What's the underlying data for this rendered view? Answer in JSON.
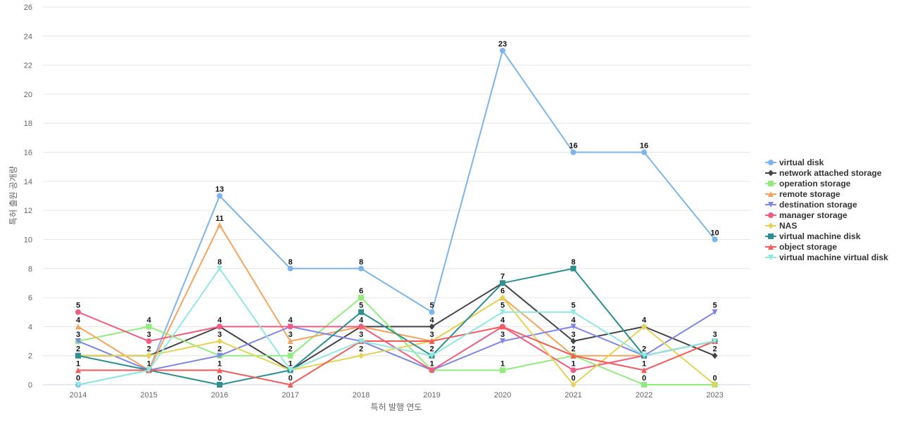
{
  "chart_data": {
    "type": "line",
    "title": "",
    "xlabel": "특허 발행 연도",
    "ylabel": "특허 출원 공개량",
    "x": [
      "2014",
      "2015",
      "2016",
      "2017",
      "2018",
      "2019",
      "2020",
      "2021",
      "2022",
      "2023"
    ],
    "ylim": [
      0,
      26
    ],
    "yticks": [
      0,
      2,
      4,
      6,
      8,
      10,
      12,
      14,
      16,
      18,
      20,
      22,
      24,
      26
    ],
    "grid": true,
    "legend_position": "right",
    "series": [
      {
        "name": "virtual disk",
        "color": "#7cb5ec",
        "marker": "circle",
        "values": [
          0,
          1,
          13,
          8,
          8,
          5,
          23,
          16,
          16,
          10
        ]
      },
      {
        "name": "network attached storage",
        "color": "#434348",
        "marker": "diamond",
        "values": [
          2,
          2,
          4,
          1,
          4,
          4,
          7,
          3,
          4,
          2
        ]
      },
      {
        "name": "operation storage",
        "color": "#90ed7d",
        "marker": "square",
        "values": [
          3,
          4,
          2,
          2,
          6,
          1,
          1,
          2,
          0,
          0
        ]
      },
      {
        "name": "remote storage",
        "color": "#f7a35c",
        "marker": "triangle",
        "values": [
          4,
          1,
          11,
          3,
          4,
          3,
          6,
          2,
          2,
          3
        ]
      },
      {
        "name": "destination storage",
        "color": "#8085e9",
        "marker": "triangle-down",
        "values": [
          3,
          1,
          2,
          4,
          3,
          1,
          3,
          4,
          2,
          5
        ]
      },
      {
        "name": "manager storage",
        "color": "#f15c80",
        "marker": "circle",
        "values": [
          5,
          3,
          4,
          4,
          4,
          1,
          4,
          1,
          2,
          3
        ]
      },
      {
        "name": "NAS",
        "color": "#e4d354",
        "marker": "diamond",
        "values": [
          2,
          2,
          3,
          1,
          2,
          3,
          6,
          0,
          4,
          0
        ]
      },
      {
        "name": "virtual machine disk",
        "color": "#2b908f",
        "marker": "square",
        "values": [
          2,
          1,
          0,
          1,
          5,
          2,
          7,
          8,
          2,
          3
        ]
      },
      {
        "name": "object storage",
        "color": "#f45b5b",
        "marker": "triangle",
        "values": [
          1,
          1,
          1,
          0,
          3,
          3,
          4,
          2,
          1,
          3
        ]
      },
      {
        "name": "virtual machine virtual disk",
        "color": "#91e8e1",
        "marker": "triangle-down",
        "values": [
          0,
          1,
          8,
          1,
          3,
          2,
          5,
          5,
          2,
          3
        ]
      }
    ],
    "data_labels": [
      {
        "x": "2014",
        "y": 5,
        "text": "5"
      },
      {
        "x": "2014",
        "y": 4,
        "text": "4"
      },
      {
        "x": "2014",
        "y": 3,
        "text": "3"
      },
      {
        "x": "2014",
        "y": 2,
        "text": "2"
      },
      {
        "x": "2014",
        "y": 1,
        "text": "1"
      },
      {
        "x": "2014",
        "y": 0,
        "text": "0"
      },
      {
        "x": "2015",
        "y": 4,
        "text": "4"
      },
      {
        "x": "2015",
        "y": 3,
        "text": "3"
      },
      {
        "x": "2015",
        "y": 2,
        "text": "2"
      },
      {
        "x": "2015",
        "y": 1,
        "text": "1"
      },
      {
        "x": "2016",
        "y": 13,
        "text": "13"
      },
      {
        "x": "2016",
        "y": 11,
        "text": "11"
      },
      {
        "x": "2016",
        "y": 8,
        "text": "8"
      },
      {
        "x": "2016",
        "y": 4,
        "text": "4"
      },
      {
        "x": "2016",
        "y": 3,
        "text": "3"
      },
      {
        "x": "2016",
        "y": 2,
        "text": "2"
      },
      {
        "x": "2016",
        "y": 1,
        "text": "1"
      },
      {
        "x": "2016",
        "y": 0,
        "text": "0"
      },
      {
        "x": "2017",
        "y": 8,
        "text": "8"
      },
      {
        "x": "2017",
        "y": 4,
        "text": "4"
      },
      {
        "x": "2017",
        "y": 3,
        "text": "3"
      },
      {
        "x": "2017",
        "y": 2,
        "text": "2"
      },
      {
        "x": "2017",
        "y": 1,
        "text": "1"
      },
      {
        "x": "2017",
        "y": 0,
        "text": "0"
      },
      {
        "x": "2018",
        "y": 8,
        "text": "8"
      },
      {
        "x": "2018",
        "y": 6,
        "text": "6"
      },
      {
        "x": "2018",
        "y": 5,
        "text": "5"
      },
      {
        "x": "2018",
        "y": 4,
        "text": "4"
      },
      {
        "x": "2018",
        "y": 3,
        "text": "3"
      },
      {
        "x": "2018",
        "y": 2,
        "text": "2"
      },
      {
        "x": "2019",
        "y": 5,
        "text": "5"
      },
      {
        "x": "2019",
        "y": 4,
        "text": "4"
      },
      {
        "x": "2019",
        "y": 3,
        "text": "3"
      },
      {
        "x": "2019",
        "y": 2,
        "text": "2"
      },
      {
        "x": "2019",
        "y": 1,
        "text": "1"
      },
      {
        "x": "2020",
        "y": 23,
        "text": "23"
      },
      {
        "x": "2020",
        "y": 7,
        "text": "7"
      },
      {
        "x": "2020",
        "y": 6,
        "text": "6"
      },
      {
        "x": "2020",
        "y": 5,
        "text": "5"
      },
      {
        "x": "2020",
        "y": 4,
        "text": "4"
      },
      {
        "x": "2020",
        "y": 3,
        "text": "3"
      },
      {
        "x": "2020",
        "y": 1,
        "text": "1"
      },
      {
        "x": "2021",
        "y": 16,
        "text": "16"
      },
      {
        "x": "2021",
        "y": 8,
        "text": "8"
      },
      {
        "x": "2021",
        "y": 5,
        "text": "5"
      },
      {
        "x": "2021",
        "y": 4,
        "text": "4"
      },
      {
        "x": "2021",
        "y": 3,
        "text": "3"
      },
      {
        "x": "2021",
        "y": 2,
        "text": "2"
      },
      {
        "x": "2021",
        "y": 1,
        "text": "1"
      },
      {
        "x": "2021",
        "y": 0,
        "text": "0"
      },
      {
        "x": "2022",
        "y": 16,
        "text": "16"
      },
      {
        "x": "2022",
        "y": 4,
        "text": "4"
      },
      {
        "x": "2022",
        "y": 2,
        "text": "2"
      },
      {
        "x": "2022",
        "y": 1,
        "text": "1"
      },
      {
        "x": "2022",
        "y": 0,
        "text": "0"
      },
      {
        "x": "2023",
        "y": 10,
        "text": "10"
      },
      {
        "x": "2023",
        "y": 5,
        "text": "5"
      },
      {
        "x": "2023",
        "y": 3,
        "text": "3"
      },
      {
        "x": "2023",
        "y": 2,
        "text": "2"
      },
      {
        "x": "2023",
        "y": 0,
        "text": "0"
      }
    ]
  }
}
